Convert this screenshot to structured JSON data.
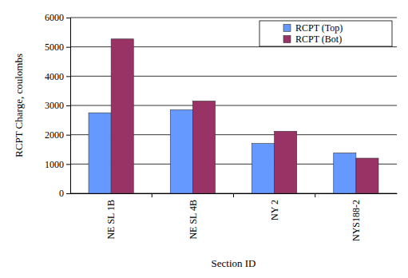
{
  "chart_data": {
    "type": "bar",
    "categories": [
      "NE SL 1B",
      "NE SL 4B",
      "NY 2",
      "NYS188-2"
    ],
    "series": [
      {
        "name": "RCPT (Top)",
        "color": "#6699ff",
        "values": [
          2750,
          2850,
          1700,
          1380
        ]
      },
      {
        "name": "RCPT (Bot)",
        "color": "#993366",
        "values": [
          5270,
          3150,
          2120,
          1200
        ]
      }
    ],
    "x_label": "Section ID",
    "y_label": "RCPT Charge, coulombs",
    "ylim": [
      0,
      6000
    ],
    "yticks": [
      0,
      1000,
      2000,
      3000,
      4000,
      5000,
      6000
    ],
    "grid": true,
    "legend": "top-right"
  }
}
